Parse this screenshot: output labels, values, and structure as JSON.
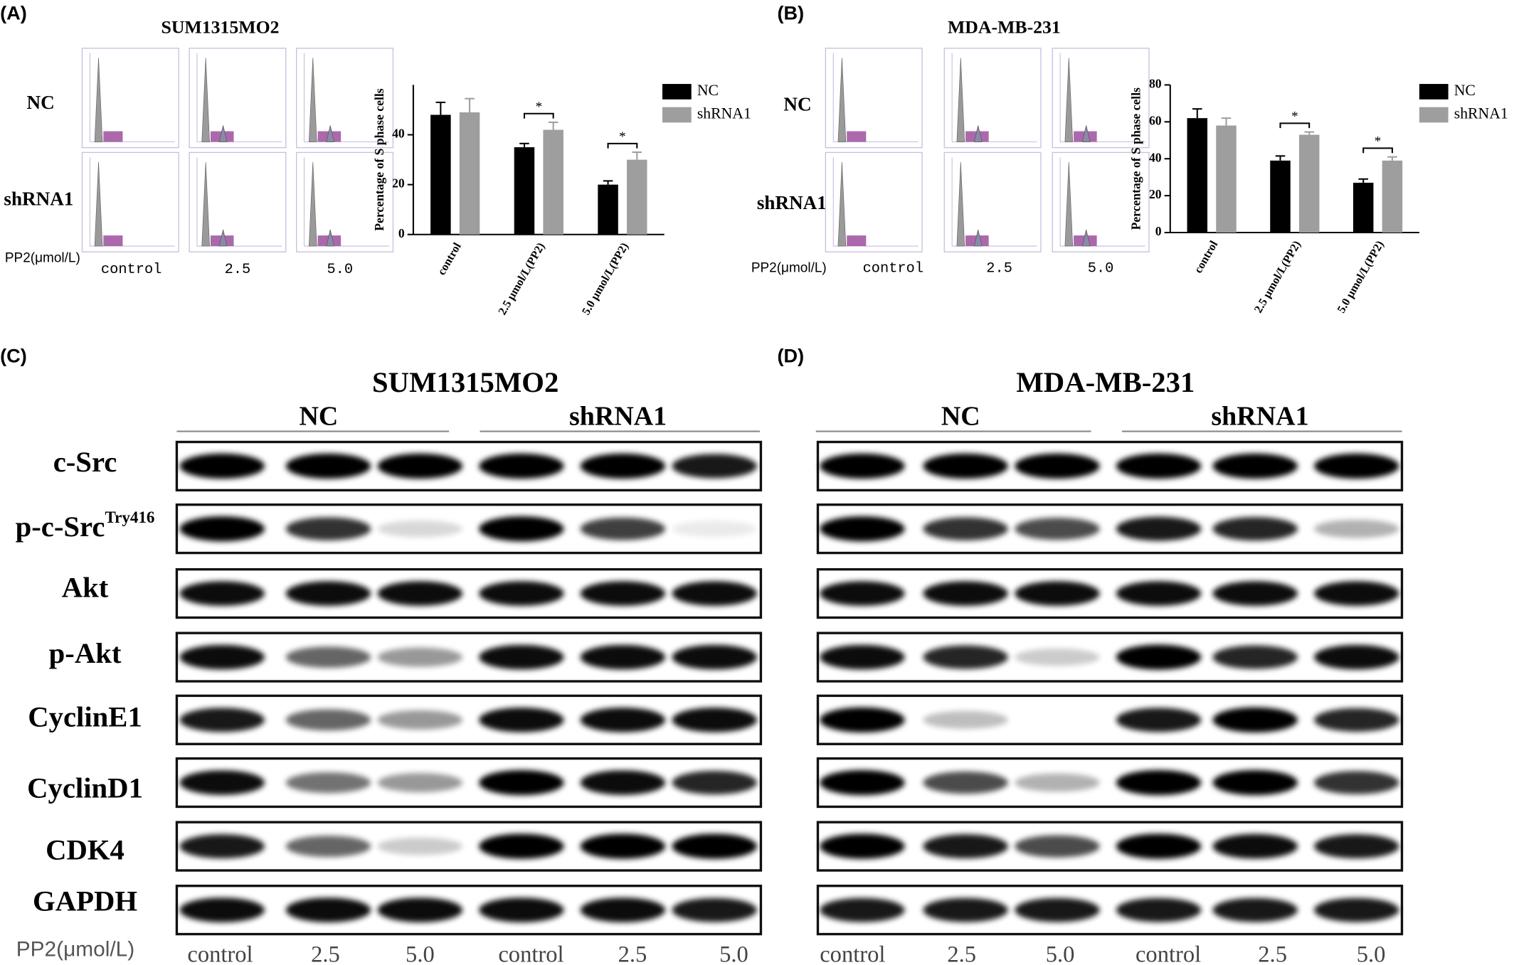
{
  "panels": [
    {
      "letter": "(A)",
      "title": "SUM1315MO2",
      "row_labels": [
        "NC",
        "shRNA1"
      ],
      "treatment_label": "PP2(μmol/L)",
      "columns": [
        "control",
        "2.5",
        "5.0"
      ]
    },
    {
      "letter": "(B)",
      "title": "MDA-MB-231",
      "row_labels": [
        "NC",
        "shRNA1"
      ],
      "treatment_label": "PP2(μmol/L)",
      "columns": [
        "control",
        "2.5",
        "5.0"
      ]
    }
  ],
  "chart_data": [
    {
      "type": "bar",
      "y_label": "Percentage of S phase cells",
      "categories": [
        "control",
        "2.5 μmol/L(PP2)",
        "5.0 μmol/L(PP2)"
      ],
      "series": [
        {
          "name": "NC",
          "color": "#000000",
          "values": [
            48,
            35,
            20
          ],
          "errors": [
            5,
            1.5,
            1.5
          ]
        },
        {
          "name": "shRNA1",
          "color": "#9e9e9e",
          "values": [
            49,
            42,
            30
          ],
          "errors": [
            5.5,
            3,
            3
          ]
        }
      ],
      "significance": [
        null,
        "*",
        "*"
      ],
      "ylim": [
        0,
        60
      ],
      "yticks": [
        0,
        20,
        40
      ],
      "legend": "right"
    },
    {
      "type": "bar",
      "y_label": "Percentage of S phase cells",
      "categories": [
        "control",
        "2.5 μmol/L(PP2)",
        "5.0 μmol/L(PP2)"
      ],
      "series": [
        {
          "name": "NC",
          "color": "#000000",
          "values": [
            62,
            39,
            27
          ],
          "errors": [
            5,
            2.5,
            2
          ]
        },
        {
          "name": "shRNA1",
          "color": "#9e9e9e",
          "values": [
            58,
            53,
            39
          ],
          "errors": [
            4,
            1.5,
            2
          ]
        }
      ],
      "significance": [
        null,
        "*",
        "*"
      ],
      "ylim": [
        0,
        80
      ],
      "yticks": [
        0,
        20,
        40,
        60,
        80
      ],
      "legend": "right"
    }
  ],
  "blots": [
    {
      "letter": "(C)",
      "title": "SUM1315MO2",
      "groups": [
        "NC",
        "shRNA1"
      ],
      "proteins": [
        "c-Src",
        "p-c-Src",
        "Akt",
        "p-Akt",
        "CyclinE1",
        "CyclinD1",
        "CDK4",
        "GAPDH"
      ],
      "superscripts": [
        null,
        "Try416",
        null,
        null,
        null,
        null,
        null,
        null
      ],
      "treatment_label": "PP2(μmol/L)",
      "lanes": [
        "control",
        "2.5",
        "5.0",
        "control",
        "2.5",
        "5.0"
      ]
    },
    {
      "letter": "(D)",
      "title": "MDA-MB-231",
      "groups": [
        "NC",
        "shRNA1"
      ],
      "lanes": [
        "control",
        "2.5",
        "5.0",
        "control",
        "2.5",
        "5.0"
      ]
    }
  ]
}
